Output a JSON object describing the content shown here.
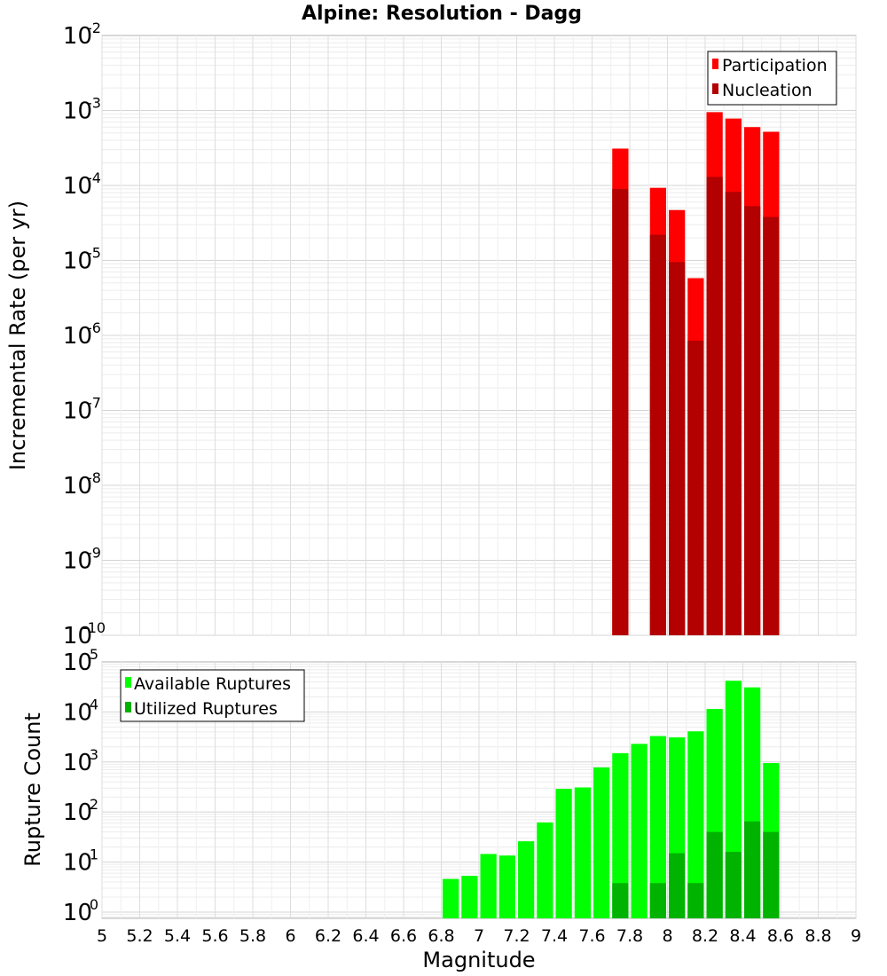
{
  "chart_data": [
    {
      "type": "bar",
      "title": "Alpine: Resolution - Dagg",
      "xlabel": "Magnitude",
      "ylabel": "Incremental Rate (per yr)",
      "yscale": "log",
      "ylim": [
        1e-10,
        0.01
      ],
      "xlim": [
        5,
        9
      ],
      "bin_width": 0.1,
      "grid": true,
      "legend_position": "top-right",
      "series": [
        {
          "name": "Participation",
          "color": "#ff0000",
          "x": [
            7.75,
            7.95,
            8.05,
            8.15,
            8.25,
            8.35,
            8.45,
            8.55
          ],
          "values": [
            0.00031,
            9.3e-05,
            4.7e-05,
            5.8e-06,
            0.00095,
            0.00078,
            0.0006,
            0.00052
          ]
        },
        {
          "name": "Nucleation",
          "color": "#b30000",
          "x": [
            7.75,
            7.95,
            8.05,
            8.15,
            8.25,
            8.35,
            8.45,
            8.55
          ],
          "values": [
            9e-05,
            2.2e-05,
            9.5e-06,
            8.5e-07,
            0.00013,
            8.2e-05,
            5.3e-05,
            3.8e-05
          ]
        }
      ]
    },
    {
      "type": "bar",
      "xlabel": "Magnitude",
      "ylabel": "Rupture Count",
      "yscale": "log",
      "ylim": [
        0.75,
        100000
      ],
      "xlim": [
        5,
        9
      ],
      "bin_width": 0.1,
      "grid": true,
      "legend_position": "top-left",
      "series": [
        {
          "name": "Available Ruptures",
          "color": "#00ff00",
          "x": [
            6.85,
            6.95,
            7.05,
            7.15,
            7.25,
            7.35,
            7.45,
            7.55,
            7.65,
            7.75,
            7.85,
            7.95,
            8.05,
            8.15,
            8.25,
            8.35,
            8.45,
            8.55
          ],
          "values": [
            4.6,
            5.3,
            14.5,
            13.5,
            26,
            62,
            290,
            310,
            780,
            1500,
            2300,
            3300,
            3100,
            4100,
            11500,
            42000,
            31000,
            950
          ]
        },
        {
          "name": "Utilized Ruptures",
          "color": "#00b300",
          "x": [
            7.75,
            7.95,
            8.05,
            8.15,
            8.25,
            8.35,
            8.45,
            8.55
          ],
          "values": [
            3.8,
            3.8,
            15,
            3.8,
            40,
            16,
            65,
            40
          ]
        }
      ]
    }
  ],
  "x_ticks": [
    "5",
    "5.2",
    "5.4",
    "5.6",
    "5.8",
    "6",
    "6.2",
    "6.4",
    "6.6",
    "6.8",
    "7",
    "7.2",
    "7.4",
    "7.6",
    "7.8",
    "8",
    "8.2",
    "8.4",
    "8.6",
    "8.8",
    "9"
  ],
  "top_y_ticks": [
    {
      "base": "10",
      "exp": "-10",
      "value": -10
    },
    {
      "base": "10",
      "exp": "-9",
      "value": -9
    },
    {
      "base": "10",
      "exp": "-8",
      "value": -8
    },
    {
      "base": "10",
      "exp": "-7",
      "value": -7
    },
    {
      "base": "10",
      "exp": "-6",
      "value": -6
    },
    {
      "base": "10",
      "exp": "-5",
      "value": -5
    },
    {
      "base": "10",
      "exp": "-4",
      "value": -4
    },
    {
      "base": "10",
      "exp": "-3",
      "value": -3
    },
    {
      "base": "10",
      "exp": "-2",
      "value": -2
    }
  ],
  "bottom_y_ticks": [
    {
      "base": "10",
      "exp": "0",
      "value": 0
    },
    {
      "base": "10",
      "exp": "1",
      "value": 1
    },
    {
      "base": "10",
      "exp": "2",
      "value": 2
    },
    {
      "base": "10",
      "exp": "3",
      "value": 3
    },
    {
      "base": "10",
      "exp": "4",
      "value": 4
    },
    {
      "base": "10",
      "exp": "5",
      "value": 5
    }
  ]
}
